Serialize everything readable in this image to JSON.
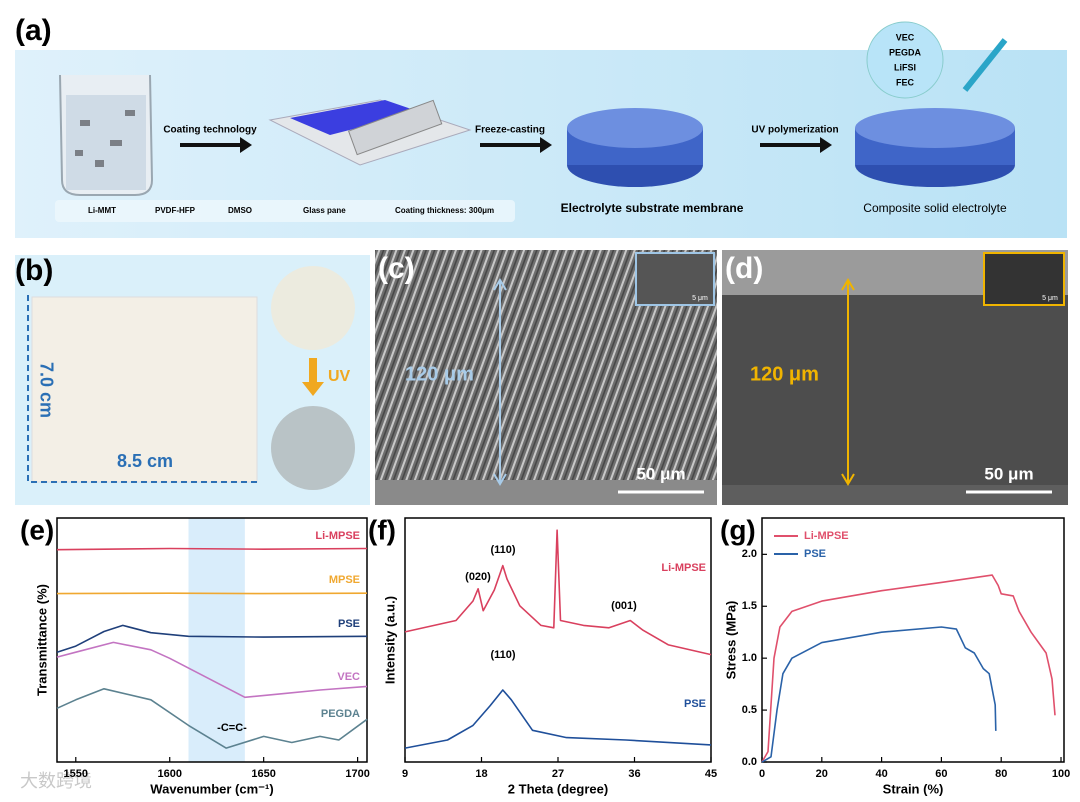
{
  "panel_a": {
    "label": "(a)",
    "steps": [
      "Coating technology",
      "Freeze-casting",
      "UV polymerization"
    ],
    "components": [
      "VEC",
      "PEGDA",
      "LiFSI",
      "FEC"
    ],
    "legend": [
      "Li-MMT",
      "PVDF-HFP",
      "DMSO",
      "Glass pane",
      "Coating thickness: 300μm"
    ],
    "captions": [
      "Electrolyte substrate membrane",
      "Composite solid electrolyte"
    ]
  },
  "panel_b": {
    "label": "(b)",
    "height": "7.0 cm",
    "width": "8.5 cm",
    "process": "UV"
  },
  "panel_c": {
    "label": "(c)",
    "thickness": "120 μm",
    "scale": "50 μm",
    "inset_scale": "5 μm"
  },
  "panel_d": {
    "label": "(d)",
    "thickness": "120 μm",
    "scale": "50 μm",
    "inset_scale": "5 μm"
  },
  "watermark": "大数跨境",
  "chart_data": [
    {
      "type": "line",
      "label": "(e)",
      "xlabel": "Wavenumber (cm⁻¹)",
      "ylabel": "Transmittance (%)",
      "xlim": [
        1540,
        1705
      ],
      "xticks": [
        1550,
        1600,
        1650,
        1700
      ],
      "ylim": [
        0,
        10
      ],
      "highlight": [
        1610,
        1640
      ],
      "annotations": [
        "-C=C-"
      ],
      "series": [
        {
          "name": "Li-MPSE",
          "color": "#d9405e",
          "x": [
            1540,
            1600,
            1650,
            1705
          ],
          "values": [
            8.7,
            8.75,
            8.72,
            8.75
          ]
        },
        {
          "name": "MPSE",
          "color": "#f0a830",
          "x": [
            1540,
            1600,
            1650,
            1705
          ],
          "values": [
            6.9,
            6.92,
            6.9,
            6.92
          ]
        },
        {
          "name": "PSE",
          "color": "#1f3f7a",
          "x": [
            1540,
            1550,
            1565,
            1575,
            1590,
            1610,
            1650,
            1705
          ],
          "values": [
            4.5,
            4.75,
            5.35,
            5.6,
            5.3,
            5.15,
            5.12,
            5.15
          ]
        },
        {
          "name": "VEC",
          "color": "#c374c2",
          "x": [
            1540,
            1550,
            1570,
            1590,
            1600,
            1620,
            1640,
            1660,
            1680,
            1705
          ],
          "values": [
            4.3,
            4.5,
            4.9,
            4.6,
            4.25,
            3.45,
            2.65,
            2.8,
            2.95,
            3.1
          ]
        },
        {
          "name": "PEGDA",
          "color": "#5c8290",
          "x": [
            1540,
            1550,
            1565,
            1590,
            1610,
            1630,
            1650,
            1665,
            1680,
            1690,
            1705
          ],
          "values": [
            2.2,
            2.55,
            3.0,
            2.55,
            1.5,
            0.57,
            1.05,
            0.8,
            1.05,
            0.9,
            1.75
          ]
        }
      ]
    },
    {
      "type": "line",
      "label": "(f)",
      "xlabel": "2 Theta (degree)",
      "ylabel": "Intensity (a.u.)",
      "xlim": [
        9,
        45
      ],
      "xticks": [
        9,
        18,
        27,
        36,
        45
      ],
      "ylim": [
        0,
        10
      ],
      "annotations": [
        "(020)",
        "(110)",
        "(001)",
        "(110)"
      ],
      "series": [
        {
          "name": "Li-MPSE",
          "color": "#d9405e",
          "x": [
            9,
            15,
            17,
            17.6,
            18.2,
            19.5,
            20.5,
            21,
            22.5,
            25,
            26.5,
            26.9,
            27.3,
            30,
            33,
            35.5,
            37,
            40,
            45
          ],
          "values": [
            5.33,
            5.8,
            6.6,
            7.1,
            6.2,
            7.05,
            8.05,
            7.5,
            6.4,
            5.6,
            5.5,
            9.5,
            5.8,
            5.6,
            5.5,
            5.8,
            5.4,
            4.8,
            4.4
          ]
        },
        {
          "name": "PSE",
          "color": "#1f4f9a",
          "x": [
            9,
            14,
            17,
            19,
            20.5,
            21.5,
            24,
            28,
            35,
            45
          ],
          "values": [
            0.57,
            0.9,
            1.5,
            2.3,
            2.95,
            2.55,
            1.3,
            1.0,
            0.9,
            0.7
          ]
        }
      ]
    },
    {
      "type": "line",
      "label": "(g)",
      "xlabel": "Strain (%)",
      "ylabel": "Stress (MPa)",
      "legend": "upper left",
      "xlim": [
        0,
        101
      ],
      "xticks": [
        0,
        20,
        40,
        60,
        80,
        100
      ],
      "ylim": [
        0,
        2.35
      ],
      "yticks": [
        {
          "value": 0,
          "label": "0.0"
        },
        0.5,
        {
          "value": 1,
          "label": "1.0"
        },
        1.5,
        {
          "value": 2,
          "label": "2.0"
        }
      ],
      "series": [
        {
          "name": "Li-MPSE",
          "color": "#e0506c",
          "x": [
            0,
            2,
            4,
            6,
            10,
            20,
            40,
            60,
            77,
            79,
            80,
            84,
            86,
            90,
            95,
            97,
            98
          ],
          "values": [
            0,
            0.1,
            1.0,
            1.3,
            1.45,
            1.55,
            1.65,
            1.73,
            1.8,
            1.7,
            1.62,
            1.6,
            1.45,
            1.25,
            1.05,
            0.8,
            0.45
          ]
        },
        {
          "name": "PSE",
          "color": "#2a62a8",
          "x": [
            0,
            3,
            5,
            7,
            10,
            20,
            40,
            60,
            65,
            68,
            71,
            74,
            76,
            78,
            78.2
          ],
          "values": [
            0,
            0.05,
            0.5,
            0.85,
            1.0,
            1.15,
            1.25,
            1.3,
            1.28,
            1.1,
            1.05,
            0.9,
            0.85,
            0.55,
            0.3
          ]
        }
      ]
    }
  ]
}
